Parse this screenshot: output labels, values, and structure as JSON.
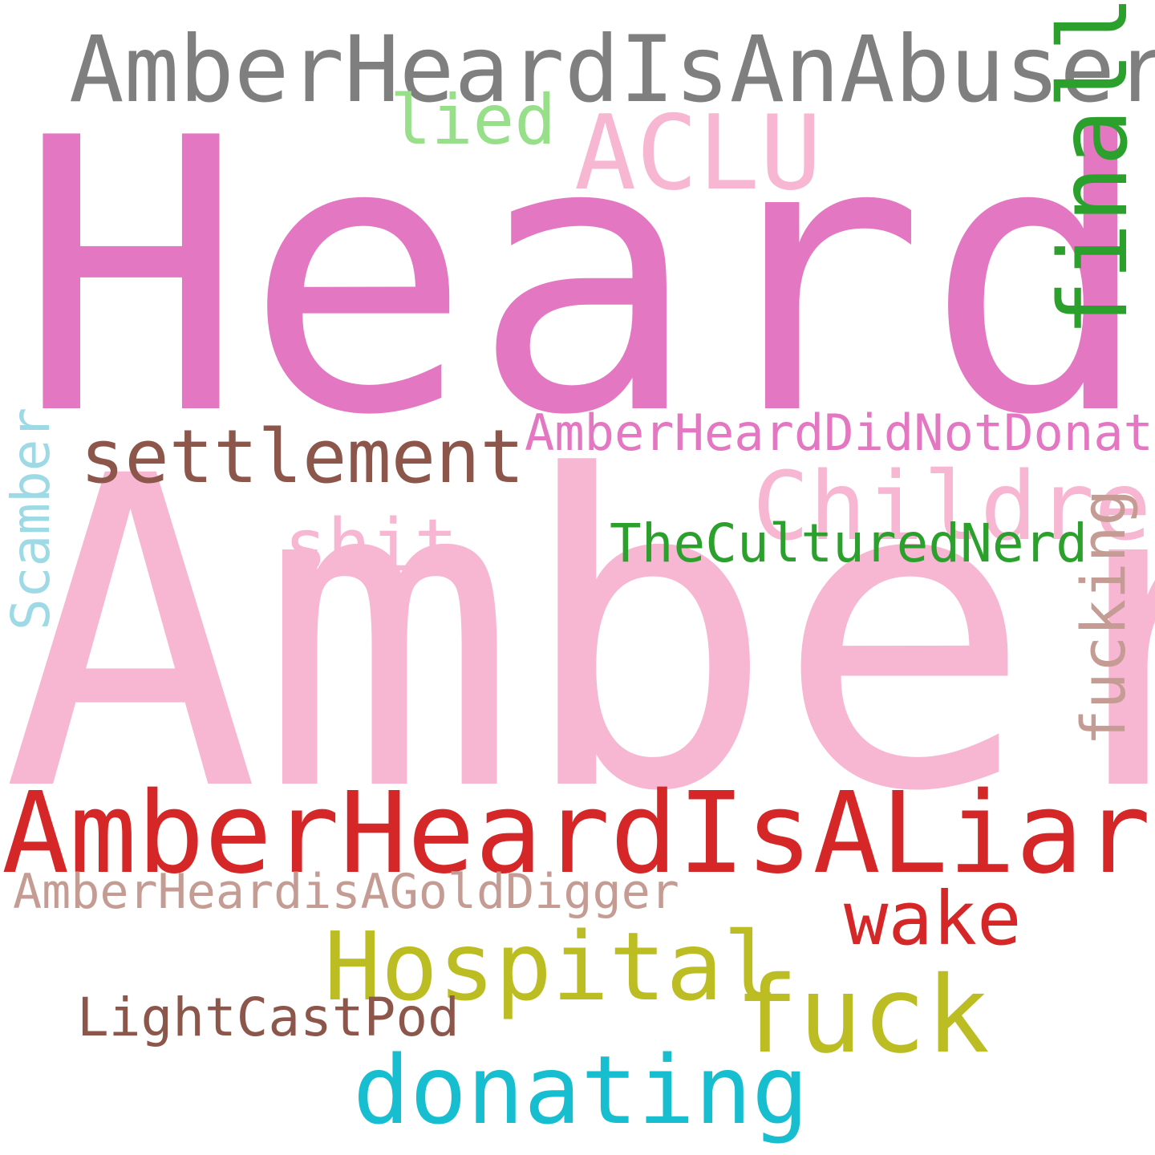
{
  "words": [
    {
      "text": "Heard",
      "color": "#e377c2"
    },
    {
      "text": "Amber",
      "color": "#f7b6d2"
    },
    {
      "text": "AmberHeardIsAnAbuser",
      "color": "#7f7f7f"
    },
    {
      "text": "AmberHeardIsALiar",
      "color": "#d62728"
    },
    {
      "text": "ACLU",
      "color": "#f7b6d2"
    },
    {
      "text": "lied",
      "color": "#98df8a"
    },
    {
      "text": "finally",
      "color": "#2ca02c"
    },
    {
      "text": "settlement",
      "color": "#8c564b"
    },
    {
      "text": "AmberHeardDidNotDonate",
      "color": "#e377c2"
    },
    {
      "text": "Children",
      "color": "#f7b6d2"
    },
    {
      "text": "shit",
      "color": "#f7b6d2"
    },
    {
      "text": "TheCulturedNerd",
      "color": "#2ca02c"
    },
    {
      "text": "Scamber",
      "color": "#9edae5"
    },
    {
      "text": "fucking",
      "color": "#c49c94"
    },
    {
      "text": "AmberHeardisAGoldDigger",
      "color": "#c49c94"
    },
    {
      "text": "wake",
      "color": "#d62728"
    },
    {
      "text": "Hospital",
      "color": "#bcbd22"
    },
    {
      "text": "fuck",
      "color": "#bcbd22"
    },
    {
      "text": "LightCastPod",
      "color": "#8c564b"
    },
    {
      "text": "donating",
      "color": "#17becf"
    }
  ]
}
